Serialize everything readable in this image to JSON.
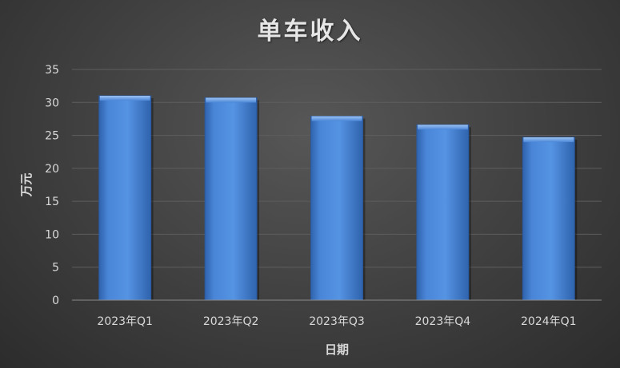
{
  "chart_data": {
    "type": "bar",
    "title": "单车收入",
    "xlabel": "日期",
    "ylabel": "万元",
    "categories": [
      "2023年Q1",
      "2023年Q2",
      "2023年Q3",
      "2023年Q4",
      "2024年Q1"
    ],
    "values": [
      31.0,
      30.7,
      27.9,
      26.6,
      24.7
    ],
    "ylim": [
      0,
      35
    ],
    "yticks": [
      0,
      5,
      10,
      15,
      20,
      25,
      30,
      35
    ],
    "grid": true,
    "legend": "none",
    "colors": {
      "bar": "#4a86d8",
      "bar_dark": "#2f63ad",
      "grid": "#5e5e5e",
      "text": "#d9d9d9"
    }
  }
}
